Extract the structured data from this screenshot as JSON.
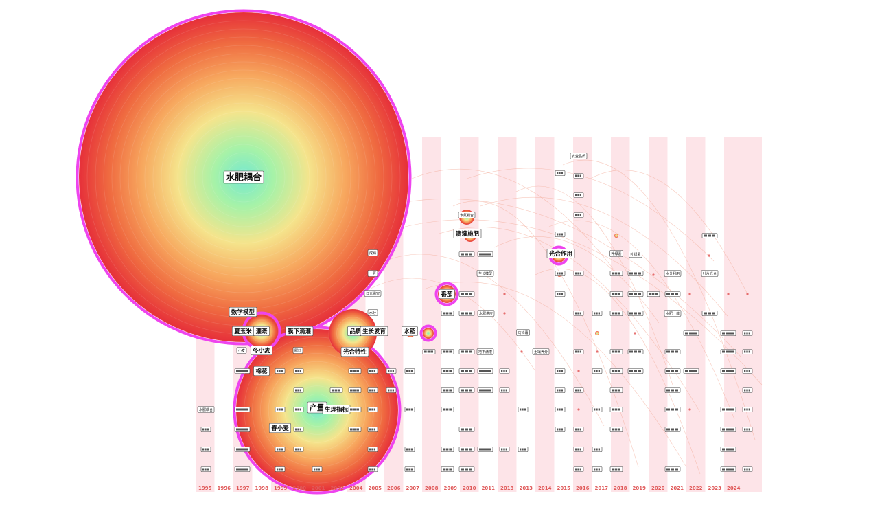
{
  "years": [
    "1995",
    "1996",
    "1997",
    "1998",
    "1999",
    "2000",
    "2001",
    "2002",
    "2004",
    "2005",
    "2006",
    "2007",
    "2008",
    "2009",
    "2010",
    "2011",
    "2013",
    "2013",
    "2014",
    "2015",
    "2016",
    "2017",
    "2018",
    "2019",
    "2020",
    "2021",
    "2022",
    "2023",
    "2024"
  ],
  "colors": {
    "stripe": "#fde4e8",
    "ring_outer": "#e8303a",
    "ring_inner": "#f7a25a",
    "core": "#7ff0c8",
    "halo": "#ee44ee",
    "link": "#f4b0a0"
  },
  "keywords": [
    {
      "id": "k-shuifei",
      "text": "水肥耦合",
      "size": "xl"
    },
    {
      "id": "k-shuxuemoxing",
      "text": "数学模型",
      "size": "m"
    },
    {
      "id": "k-xiayumi",
      "text": "夏玉米",
      "size": "m"
    },
    {
      "id": "k-guangai",
      "text": "灌溉",
      "size": "m"
    },
    {
      "id": "k-dixiadi",
      "text": "膜下滴灌",
      "size": "m"
    },
    {
      "id": "k-pinzhong",
      "text": "品质",
      "size": "m"
    },
    {
      "id": "k-shengzhang",
      "text": "生长发育",
      "size": "m"
    },
    {
      "id": "k-shuidao",
      "text": "水稻",
      "size": "m"
    },
    {
      "id": "k-dongxiaomai",
      "text": "冬小麦",
      "size": "m"
    },
    {
      "id": "k-xiaomai",
      "text": "小麦",
      "size": "s"
    },
    {
      "id": "k-mianhua",
      "text": "棉花",
      "size": "m"
    },
    {
      "id": "k-guanghezuoyong1",
      "text": "光合特性",
      "size": "m"
    },
    {
      "id": "k-chanliang",
      "text": "产量",
      "size": "l"
    },
    {
      "id": "k-shenglizhibiao",
      "text": "生理指标",
      "size": "m"
    },
    {
      "id": "k-chunxiaomai",
      "text": "春小麦",
      "size": "m"
    },
    {
      "id": "k-fanqie",
      "text": "番茄",
      "size": "m"
    },
    {
      "id": "k-shuifeiouhe2",
      "text": "水氮耦合",
      "size": "s"
    },
    {
      "id": "k-diguanshifei",
      "text": "滴灌施肥",
      "size": "m"
    },
    {
      "id": "k-guanghezuoyong2",
      "text": "光合作用",
      "size": "m"
    },
    {
      "id": "k-yelvsu",
      "text": "叶绿素",
      "size": "s"
    },
    {
      "id": "k-nongyepinzhi",
      "text": "农业品质",
      "size": "s"
    },
    {
      "id": "k-shuifeiliyong",
      "text": "水分利用",
      "size": "s"
    },
    {
      "id": "k-yeguanghe",
      "text": "叶片光合",
      "size": "s"
    },
    {
      "id": "k-shengzhangmoxing",
      "text": "生长模型",
      "size": "s"
    },
    {
      "id": "k-shuifeiyuan",
      "text": "水肥供应",
      "size": "s"
    },
    {
      "id": "k-diyanxiao",
      "text": "地下滴灌",
      "size": "s"
    },
    {
      "id": "k-turangyangfen",
      "text": "土壤养分",
      "size": "s"
    },
    {
      "id": "k-maling",
      "text": "马铃薯",
      "size": "s"
    },
    {
      "id": "k-yeguangxiao",
      "text": "叶绿素",
      "size": "s"
    },
    {
      "id": "k-shuifeiyiti",
      "text": "水肥一体",
      "size": "s"
    },
    {
      "id": "k-feiliao",
      "text": "肥料",
      "size": "s"
    },
    {
      "id": "k-chengshu",
      "text": "成熟",
      "size": "s"
    },
    {
      "id": "k-tudou",
      "text": "土豆",
      "size": "s"
    },
    {
      "id": "k-riguangwendu",
      "text": "日光温室",
      "size": "s"
    },
    {
      "id": "k-shuifen",
      "text": "水分",
      "size": "s"
    },
    {
      "id": "k-shuifeiouhe3",
      "text": "水肥耦合",
      "size": "s"
    }
  ]
}
